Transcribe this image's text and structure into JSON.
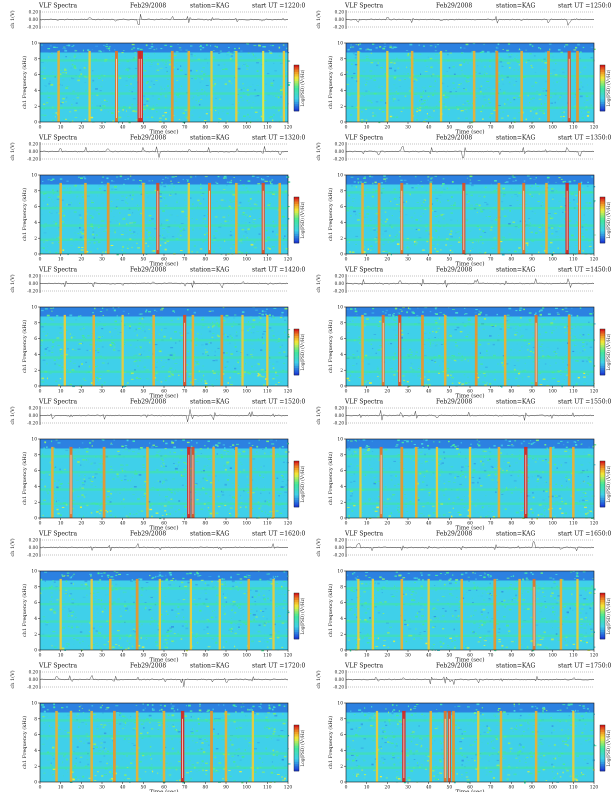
{
  "figure": {
    "header_prefix": "VLF Spectra",
    "date": "Feb29/2008",
    "station": "station=KAG",
    "ut_prefix": "start UT =",
    "ylabel_top": "ch 1(V)",
    "ylabel_main": "ch1 Frequency (kHz)",
    "xlabel": "Time (sec)",
    "colorbar_label": "Log(PSD) (V²/Hz)",
    "top_ticks": [
      "0.20",
      "0.00",
      "-0.20"
    ],
    "freq_ticks": [
      "10",
      "8",
      "6",
      "4",
      "2",
      "0"
    ],
    "time_ticks": [
      "0",
      "10",
      "20",
      "30",
      "40",
      "50",
      "60",
      "70",
      "80",
      "90",
      "100",
      "110",
      "120"
    ],
    "colors": {
      "background": "#3fd0ea",
      "low": "#1d3fd8",
      "mid": "#42e89a",
      "high": "#f3ee3a",
      "peak": "#d8221c",
      "axis": "#111111"
    }
  },
  "chart_data": [
    {
      "type": "heatmap",
      "title": "VLF Spectra Feb29/2008 station=KAG start UT =1220:0",
      "start_ut": "1220:0",
      "xlabel": "Time (sec)",
      "ylabel": "ch1 Frequency (kHz)",
      "xlim": [
        0,
        120
      ],
      "ylim": [
        0,
        10
      ],
      "spike_times": [
        9,
        24,
        37,
        48,
        49,
        64,
        72,
        83,
        95,
        108,
        118
      ],
      "spike_strength": [
        0.6,
        0.5,
        0.8,
        1.0,
        1.0,
        0.7,
        0.6,
        0.5,
        0.5,
        0.4,
        0.5
      ]
    },
    {
      "type": "heatmap",
      "title": "VLF Spectra Feb29/2008 station=KAG start UT =1250:0",
      "start_ut": "1250:0",
      "xlabel": "Time (sec)",
      "ylabel": "ch1 Frequency (kHz)",
      "xlim": [
        0,
        120
      ],
      "ylim": [
        0,
        10
      ],
      "spike_times": [
        6,
        20,
        32,
        46,
        62,
        73,
        85,
        98,
        108,
        112
      ],
      "spike_strength": [
        0.5,
        0.5,
        0.6,
        0.5,
        0.6,
        0.7,
        0.6,
        0.7,
        0.9,
        0.7
      ]
    },
    {
      "type": "heatmap",
      "title": "VLF Spectra Feb29/2008 station=KAG start UT =1320:0",
      "start_ut": "1320:0",
      "xlabel": "Time (sec)",
      "ylabel": "ch1 Frequency (kHz)",
      "xlim": [
        0,
        120
      ],
      "ylim": [
        0,
        10
      ],
      "spike_times": [
        10,
        22,
        33,
        50,
        57,
        72,
        82,
        95,
        108,
        116
      ],
      "spike_strength": [
        0.6,
        0.6,
        0.7,
        0.6,
        0.9,
        0.5,
        0.8,
        0.6,
        0.9,
        0.6
      ]
    },
    {
      "type": "heatmap",
      "title": "VLF Spectra Feb29/2008 station=KAG start UT =1350:0",
      "start_ut": "1350:0",
      "xlabel": "Time (sec)",
      "ylabel": "ch1 Frequency (kHz)",
      "xlim": [
        0,
        120
      ],
      "ylim": [
        0,
        10
      ],
      "spike_times": [
        8,
        16,
        27,
        41,
        57,
        74,
        86,
        97,
        107,
        113
      ],
      "spike_strength": [
        0.6,
        0.7,
        0.8,
        0.6,
        0.9,
        0.7,
        0.8,
        0.6,
        1.0,
        0.8
      ]
    },
    {
      "type": "heatmap",
      "title": "VLF Spectra Feb29/2008 station=KAG start UT =1420:0",
      "start_ut": "1420:0",
      "xlabel": "Time (sec)",
      "ylabel": "ch1 Frequency (kHz)",
      "xlim": [
        0,
        120
      ],
      "ylim": [
        0,
        10
      ],
      "spike_times": [
        12,
        26,
        40,
        55,
        70,
        74,
        88,
        98,
        110
      ],
      "spike_strength": [
        0.5,
        0.6,
        0.5,
        0.6,
        0.9,
        0.6,
        0.7,
        0.5,
        0.5
      ]
    },
    {
      "type": "heatmap",
      "title": "VLF Spectra Feb29/2008 station=KAG start UT =1450:0",
      "start_ut": "1450:0",
      "xlabel": "Time (sec)",
      "ylabel": "ch1 Frequency (kHz)",
      "xlim": [
        0,
        120
      ],
      "ylim": [
        0,
        10
      ],
      "spike_times": [
        8,
        18,
        26,
        37,
        48,
        63,
        77,
        92,
        108
      ],
      "spike_strength": [
        0.6,
        0.8,
        0.9,
        0.7,
        0.6,
        0.7,
        0.6,
        0.8,
        0.7
      ]
    },
    {
      "type": "heatmap",
      "title": "VLF Spectra Feb29/2008 station=KAG start UT =1520:0",
      "start_ut": "1520:0",
      "xlabel": "Time (sec)",
      "ylabel": "ch1 Frequency (kHz)",
      "xlim": [
        0,
        120
      ],
      "ylim": [
        0,
        10
      ],
      "spike_times": [
        6,
        15,
        31,
        52,
        72,
        74,
        84,
        95,
        102,
        113
      ],
      "spike_strength": [
        0.6,
        0.8,
        0.7,
        0.6,
        1.0,
        0.9,
        0.6,
        0.6,
        0.7,
        0.6
      ]
    },
    {
      "type": "heatmap",
      "title": "VLF Spectra Feb29/2008 station=KAG start UT =1550:0",
      "start_ut": "1550:0",
      "xlabel": "Time (sec)",
      "ylabel": "ch1 Frequency (kHz)",
      "xlim": [
        0,
        120
      ],
      "ylim": [
        0,
        10
      ],
      "spike_times": [
        7,
        17,
        27,
        34,
        44,
        60,
        74,
        87,
        99,
        110
      ],
      "spike_strength": [
        0.5,
        0.8,
        0.7,
        0.6,
        0.5,
        0.5,
        0.6,
        1.0,
        0.6,
        0.6
      ]
    },
    {
      "type": "heatmap",
      "title": "VLF Spectra Feb29/2008 station=KAG start UT =1620:0",
      "start_ut": "1620:0",
      "xlabel": "Time (sec)",
      "ylabel": "ch1 Frequency (kHz)",
      "xlim": [
        0,
        120
      ],
      "ylim": [
        0,
        10
      ],
      "spike_times": [
        10,
        25,
        34,
        47,
        58,
        73,
        87,
        101,
        113
      ],
      "spike_strength": [
        0.5,
        0.5,
        0.6,
        0.7,
        0.5,
        0.5,
        0.5,
        0.6,
        0.5
      ]
    },
    {
      "type": "heatmap",
      "title": "VLF Spectra Feb29/2008 station=KAG start UT =1650:0",
      "start_ut": "1650:0",
      "xlabel": "Time (sec)",
      "ylabel": "ch1 Frequency (kHz)",
      "xlim": [
        0,
        120
      ],
      "ylim": [
        0,
        10
      ],
      "spike_times": [
        6,
        13,
        27,
        40,
        56,
        72,
        84,
        91,
        104,
        112
      ],
      "spike_strength": [
        0.5,
        0.5,
        0.6,
        0.5,
        0.6,
        0.7,
        0.6,
        0.8,
        0.6,
        0.5
      ]
    },
    {
      "type": "heatmap",
      "title": "VLF Spectra Feb29/2008 station=KAG start UT =1720:0",
      "start_ut": "1720:0",
      "xlabel": "Time (sec)",
      "ylabel": "ch1 Frequency (kHz)",
      "xlim": [
        0,
        120
      ],
      "ylim": [
        0,
        10
      ],
      "spike_times": [
        8,
        15,
        25,
        36,
        47,
        60,
        69,
        83,
        90,
        103
      ],
      "spike_strength": [
        0.6,
        0.6,
        0.6,
        0.7,
        0.6,
        0.6,
        1.0,
        0.7,
        0.6,
        0.5
      ]
    },
    {
      "type": "heatmap",
      "title": "VLF Spectra Feb29/2008 station=KAG start UT =1750:0",
      "start_ut": "1750:0",
      "xlabel": "Time (sec)",
      "ylabel": "ch1 Frequency (kHz)",
      "xlim": [
        0,
        120
      ],
      "ylim": [
        0,
        10
      ],
      "spike_times": [
        15,
        28,
        41,
        48,
        50,
        52,
        64,
        75,
        92,
        110
      ],
      "spike_strength": [
        0.5,
        1.0,
        0.6,
        0.8,
        0.9,
        0.7,
        0.5,
        0.6,
        0.6,
        0.5
      ]
    }
  ]
}
